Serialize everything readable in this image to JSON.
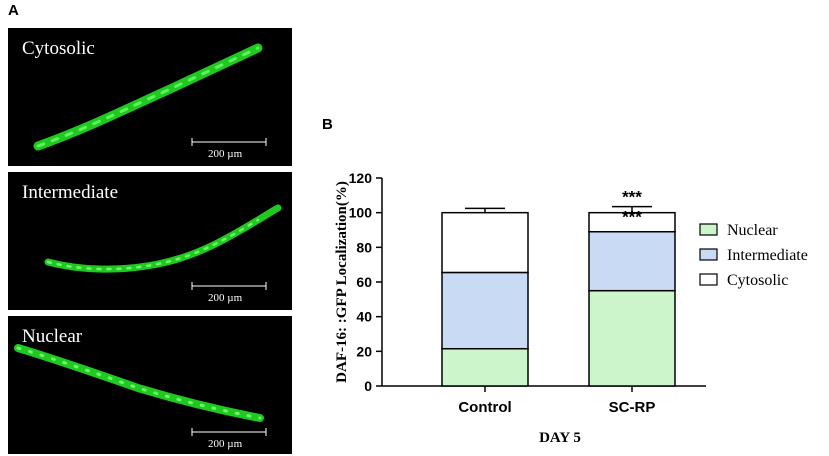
{
  "panel_a_label": "A",
  "panel_b_label": "B",
  "micrographs": [
    {
      "label": "Cytosolic",
      "scale_text": "200 µm"
    },
    {
      "label": "Intermediate",
      "scale_text": "200 µm"
    },
    {
      "label": "Nuclear",
      "scale_text": "200 µm"
    }
  ],
  "colors": {
    "nuclear": "#ccf5cc",
    "intermediate": "#c9daf5",
    "cytosolic": "#ffffff",
    "worm": "#2ee02e"
  },
  "chart_data": {
    "type": "bar",
    "stacked": true,
    "categories": [
      "Control",
      "SC-RP"
    ],
    "series": [
      {
        "name": "Nuclear",
        "values": [
          21.5,
          55
        ],
        "errors": [
          2.5,
          2.5
        ]
      },
      {
        "name": "Intermediate",
        "values": [
          44,
          34
        ],
        "errors": [
          4,
          3
        ]
      },
      {
        "name": "Cytosolic",
        "values": [
          34.5,
          11
        ],
        "errors": [
          2.5,
          3.5
        ]
      }
    ],
    "significance": [
      {
        "category": "SC-RP",
        "series": "Intermediate",
        "text": "***"
      },
      {
        "category": "SC-RP",
        "series": "Cytosolic",
        "text": "***"
      }
    ],
    "ylabel": "DAF-16: :GFP Localization(%)",
    "xlabel": "DAY 5",
    "ylim": [
      0,
      120
    ],
    "yticks": [
      0,
      20,
      40,
      60,
      80,
      100,
      120
    ],
    "legend": [
      "Nuclear",
      "Intermediate",
      "Cytosolic"
    ],
    "legend_position": "right",
    "grid": false
  }
}
